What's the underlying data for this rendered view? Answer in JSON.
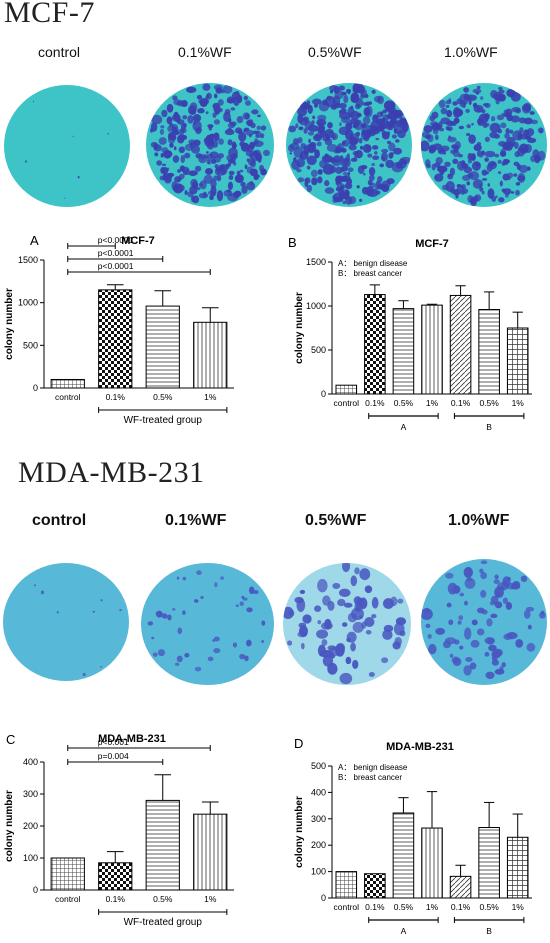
{
  "sections": {
    "mcf7_title": "MCF-7",
    "mda_title": "MDA-MB-231"
  },
  "dish_labels_top": [
    "control",
    "0.1%WF",
    "0.5%WF",
    "1.0%WF"
  ],
  "dish_labels_bottom": [
    "control",
    "0.1%WF",
    "0.5%WF",
    "1.0%WF"
  ],
  "colors": {
    "plate_top_bg": "#3ec4c6",
    "colony_top": "#3b3fb0",
    "plate_bottom_bg": "#58b8d8",
    "colony_bottom": "#4957c0"
  },
  "chart_data": [
    {
      "panel": "A",
      "title": "MCF-7",
      "type": "bar",
      "ylabel": "colony number",
      "ylim": [
        0,
        1500
      ],
      "yticks": [
        0,
        500,
        1000,
        1500
      ],
      "categories": [
        "control",
        "0.1%",
        "0.5%",
        "1%"
      ],
      "values": [
        100,
        1150,
        960,
        770
      ],
      "errors": [
        0,
        60,
        180,
        170
      ],
      "patterns": [
        "grid",
        "checker",
        "hlines",
        "vlines"
      ],
      "group_label": "WF-treated group",
      "comparisons": [
        {
          "label": "p<0.0001",
          "from": 0,
          "to": 1
        },
        {
          "label": "p<0.0001",
          "from": 0,
          "to": 2
        },
        {
          "label": "p<0.0001",
          "from": 0,
          "to": 3
        }
      ]
    },
    {
      "panel": "B",
      "title": "MCF-7",
      "type": "bar",
      "ylabel": "colony number",
      "ylim": [
        0,
        1500
      ],
      "yticks": [
        0,
        500,
        1000,
        1500
      ],
      "legend": [
        "A： benign disease",
        "B： breast cancer"
      ],
      "categories": [
        "control",
        "0.1%",
        "0.5%",
        "1%",
        "0.1%",
        "0.5%",
        "1%"
      ],
      "values": [
        100,
        1130,
        970,
        1010,
        1120,
        960,
        750
      ],
      "errors": [
        0,
        110,
        90,
        10,
        110,
        200,
        180
      ],
      "patterns": [
        "grid",
        "checker",
        "hlines",
        "vlines",
        "diag",
        "hlines",
        "crosshatch"
      ],
      "group_labels": [
        "A",
        "B"
      ]
    },
    {
      "panel": "C",
      "title": "MDA-MB-231",
      "type": "bar",
      "ylabel": "colony number",
      "ylim": [
        0,
        400
      ],
      "yticks": [
        0,
        100,
        200,
        300,
        400
      ],
      "categories": [
        "control",
        "0.1%",
        "0.5%",
        "1%"
      ],
      "values": [
        100,
        85,
        280,
        237
      ],
      "errors": [
        0,
        35,
        80,
        38
      ],
      "patterns": [
        "grid",
        "checker",
        "hlines",
        "vlines"
      ],
      "group_label": "WF-treated group",
      "comparisons": [
        {
          "label": "p=0.004",
          "from": 0,
          "to": 2
        },
        {
          "label": "p<0.001",
          "from": 0,
          "to": 3
        }
      ]
    },
    {
      "panel": "D",
      "title": "MDA-MB-231",
      "type": "bar",
      "ylabel": "colony number",
      "ylim": [
        0,
        500
      ],
      "yticks": [
        0,
        100,
        200,
        300,
        400,
        500
      ],
      "legend": [
        "A： benign disease",
        "B： breast cancer"
      ],
      "categories": [
        "control",
        "0.1%",
        "0.5%",
        "1%",
        "0.1%",
        "0.5%",
        "1%"
      ],
      "values": [
        100,
        92,
        322,
        265,
        82,
        267,
        230
      ],
      "errors": [
        0,
        0,
        58,
        138,
        42,
        95,
        88
      ],
      "patterns": [
        "grid",
        "checker",
        "hlines",
        "vlines",
        "diag",
        "hlines",
        "crosshatch"
      ],
      "group_labels": [
        "A",
        "B"
      ]
    }
  ]
}
